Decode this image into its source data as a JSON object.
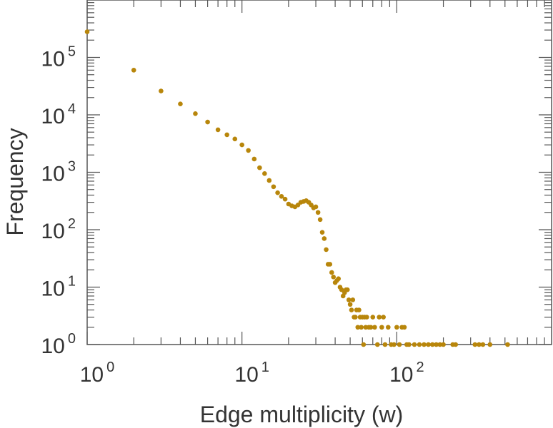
{
  "chart_data": {
    "type": "scatter",
    "title": "",
    "xlabel": "Edge multiplicity (w)",
    "ylabel": "Frequency",
    "x_scale": "log",
    "y_scale": "log",
    "xlim": [
      1,
      1000
    ],
    "ylim": [
      1,
      1000000
    ],
    "grid": false,
    "legend": "none",
    "marker_color": "#B8860B",
    "axis_color": "#555555",
    "x_ticks": [
      {
        "base": "10",
        "exp": "0",
        "value": 1
      },
      {
        "base": "10",
        "exp": "1",
        "value": 10
      },
      {
        "base": "10",
        "exp": "2",
        "value": 100
      }
    ],
    "y_ticks": [
      {
        "base": "10",
        "exp": "0",
        "value": 1
      },
      {
        "base": "10",
        "exp": "1",
        "value": 10
      },
      {
        "base": "10",
        "exp": "2",
        "value": 100
      },
      {
        "base": "10",
        "exp": "3",
        "value": 1000
      },
      {
        "base": "10",
        "exp": "4",
        "value": 10000
      },
      {
        "base": "10",
        "exp": "5",
        "value": 100000
      }
    ],
    "points": [
      [
        1,
        280000
      ],
      [
        2,
        60000
      ],
      [
        3,
        26000
      ],
      [
        4,
        15500
      ],
      [
        5,
        10500
      ],
      [
        6,
        7500
      ],
      [
        7,
        5500
      ],
      [
        8,
        4500
      ],
      [
        9,
        3800
      ],
      [
        10,
        3000
      ],
      [
        11,
        2400
      ],
      [
        12,
        1700
      ],
      [
        13,
        1200
      ],
      [
        14,
        950
      ],
      [
        15,
        720
      ],
      [
        16,
        560
      ],
      [
        17,
        440
      ],
      [
        18,
        380
      ],
      [
        19,
        340
      ],
      [
        20,
        280
      ],
      [
        21,
        260
      ],
      [
        22,
        250
      ],
      [
        23,
        270
      ],
      [
        24,
        300
      ],
      [
        25,
        310
      ],
      [
        26,
        320
      ],
      [
        27,
        300
      ],
      [
        28,
        270
      ],
      [
        29,
        240
      ],
      [
        30,
        250
      ],
      [
        31,
        200
      ],
      [
        32,
        150
      ],
      [
        33,
        90
      ],
      [
        34,
        70
      ],
      [
        35,
        45
      ],
      [
        36,
        25
      ],
      [
        37,
        25
      ],
      [
        38,
        18
      ],
      [
        39,
        15
      ],
      [
        40,
        12
      ],
      [
        41,
        13
      ],
      [
        42,
        14
      ],
      [
        43,
        10
      ],
      [
        44,
        9
      ],
      [
        45,
        7
      ],
      [
        46,
        8
      ],
      [
        47,
        9
      ],
      [
        48,
        9
      ],
      [
        49,
        6
      ],
      [
        50,
        5
      ],
      [
        51,
        4
      ],
      [
        52,
        6
      ],
      [
        53,
        3
      ],
      [
        54,
        3
      ],
      [
        55,
        4
      ],
      [
        56,
        2
      ],
      [
        57,
        4
      ],
      [
        58,
        3
      ],
      [
        59,
        2
      ],
      [
        60,
        3
      ],
      [
        61,
        1
      ],
      [
        62,
        3
      ],
      [
        63,
        2
      ],
      [
        64,
        3
      ],
      [
        66,
        2
      ],
      [
        68,
        2
      ],
      [
        70,
        3
      ],
      [
        72,
        2
      ],
      [
        75,
        1
      ],
      [
        77,
        3
      ],
      [
        80,
        2
      ],
      [
        82,
        3
      ],
      [
        84,
        1
      ],
      [
        88,
        2
      ],
      [
        92,
        1
      ],
      [
        96,
        1
      ],
      [
        100,
        2
      ],
      [
        104,
        1
      ],
      [
        108,
        2
      ],
      [
        112,
        2
      ],
      [
        116,
        1
      ],
      [
        120,
        1
      ],
      [
        130,
        1
      ],
      [
        140,
        1
      ],
      [
        150,
        1
      ],
      [
        160,
        1
      ],
      [
        170,
        1
      ],
      [
        180,
        1
      ],
      [
        190,
        1
      ],
      [
        200,
        1
      ],
      [
        230,
        1
      ],
      [
        240,
        1
      ],
      [
        320,
        1
      ],
      [
        340,
        1
      ],
      [
        360,
        1
      ],
      [
        400,
        1
      ],
      [
        520,
        1
      ]
    ]
  }
}
